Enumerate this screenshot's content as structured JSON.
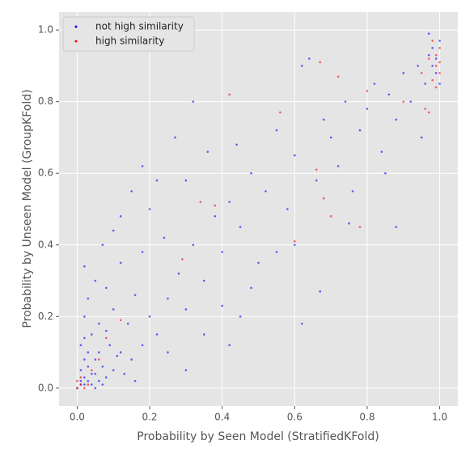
{
  "chart_data": {
    "type": "scatter",
    "xlabel": "Probability by Seen Model (StratifiedKFold)",
    "ylabel": "Probability by Unseen Model (GroupKFold)",
    "xlim": [
      -0.05,
      1.05
    ],
    "ylim": [
      -0.05,
      1.05
    ],
    "xticks": [
      {
        "value": 0,
        "label": "0.0"
      },
      0.2,
      0.4,
      0.6,
      0.8,
      {
        "value": 1,
        "label": "1.0"
      }
    ],
    "yticks": [
      {
        "value": 0,
        "label": "0.0"
      },
      0.2,
      0.4,
      0.6,
      0.8,
      {
        "value": 1,
        "label": "1.0"
      }
    ],
    "grid": true,
    "legend": "upper left",
    "series": [
      {
        "name": "not high similarity",
        "color": "#0000ff",
        "x": [
          0.01,
          0.02,
          0.03,
          0.01,
          0.04,
          0.05,
          0.02,
          0.06,
          0.03,
          0.07,
          0.08,
          0.01,
          0.1,
          0.04,
          0.12,
          0.02,
          0.06,
          0.09,
          0.15,
          0.03,
          0.05,
          0.1,
          0.14,
          0.18,
          0.2,
          0.08,
          0.12,
          0.02,
          0.07,
          0.16,
          0.22,
          0.25,
          0.18,
          0.1,
          0.28,
          0.3,
          0.24,
          0.2,
          0.15,
          0.18,
          0.32,
          0.35,
          0.38,
          0.4,
          0.3,
          0.36,
          0.27,
          0.32,
          0.42,
          0.45,
          0.48,
          0.5,
          0.52,
          0.44,
          0.55,
          0.58,
          0.6,
          0.62,
          0.64,
          0.66,
          0.68,
          0.7,
          0.72,
          0.74,
          0.76,
          0.78,
          0.8,
          0.82,
          0.84,
          0.86,
          0.88,
          0.9,
          0.92,
          0.94,
          0.95,
          0.96,
          0.97,
          0.98,
          0.99,
          1.0,
          0.99,
          0.98,
          1.0,
          0.97,
          0.62,
          0.67,
          0.42,
          0.4,
          0.55,
          0.48,
          0.75,
          0.6,
          0.85,
          0.88,
          0.3,
          0.25,
          0.35,
          0.45,
          0.12,
          0.22,
          0.05,
          0.04,
          0.03,
          0.06,
          0.02,
          0.08,
          0.11,
          0.13,
          0.16,
          0.0,
          0.01,
          0.02,
          0.05,
          0.07
        ],
        "values": [
          0.01,
          0.03,
          0.02,
          0.05,
          0.01,
          0.04,
          0.08,
          0.02,
          0.1,
          0.06,
          0.03,
          0.12,
          0.05,
          0.15,
          0.1,
          0.2,
          0.18,
          0.12,
          0.08,
          0.25,
          0.3,
          0.22,
          0.18,
          0.12,
          0.2,
          0.28,
          0.35,
          0.34,
          0.4,
          0.26,
          0.15,
          0.25,
          0.38,
          0.44,
          0.32,
          0.22,
          0.42,
          0.5,
          0.55,
          0.62,
          0.4,
          0.3,
          0.48,
          0.38,
          0.58,
          0.66,
          0.7,
          0.8,
          0.52,
          0.45,
          0.6,
          0.35,
          0.55,
          0.68,
          0.72,
          0.5,
          0.65,
          0.9,
          0.92,
          0.58,
          0.75,
          0.7,
          0.62,
          0.8,
          0.55,
          0.72,
          0.78,
          0.85,
          0.66,
          0.82,
          0.75,
          0.88,
          0.8,
          0.9,
          0.7,
          0.85,
          0.93,
          0.95,
          0.88,
          0.97,
          0.92,
          0.9,
          0.85,
          0.99,
          0.18,
          0.27,
          0.12,
          0.23,
          0.38,
          0.28,
          0.46,
          0.4,
          0.6,
          0.45,
          0.05,
          0.1,
          0.15,
          0.2,
          0.48,
          0.58,
          0.08,
          0.04,
          0.06,
          0.1,
          0.14,
          0.16,
          0.09,
          0.04,
          0.02,
          0.0,
          0.02,
          0.01,
          0.0,
          0.01
        ]
      },
      {
        "name": "high similarity",
        "color": "#ff0000",
        "x": [
          0.0,
          0.01,
          0.0,
          0.02,
          0.01,
          0.03,
          0.04,
          0.06,
          0.08,
          0.12,
          0.29,
          0.34,
          0.38,
          0.56,
          0.6,
          0.67,
          0.7,
          0.72,
          0.78,
          0.8,
          0.9,
          0.95,
          0.96,
          0.97,
          0.98,
          0.99,
          1.0,
          0.99,
          1.0,
          0.98,
          0.99,
          1.0,
          0.97,
          0.42,
          0.66,
          0.68
        ],
        "values": [
          0.0,
          0.01,
          0.02,
          0.0,
          0.03,
          0.01,
          0.05,
          0.08,
          0.14,
          0.19,
          0.36,
          0.52,
          0.51,
          0.77,
          0.41,
          0.91,
          0.48,
          0.87,
          0.45,
          0.83,
          0.8,
          0.88,
          0.78,
          0.77,
          0.86,
          0.9,
          0.95,
          0.93,
          0.88,
          0.97,
          0.84,
          0.91,
          0.92,
          0.82,
          0.61,
          0.53
        ]
      }
    ]
  }
}
